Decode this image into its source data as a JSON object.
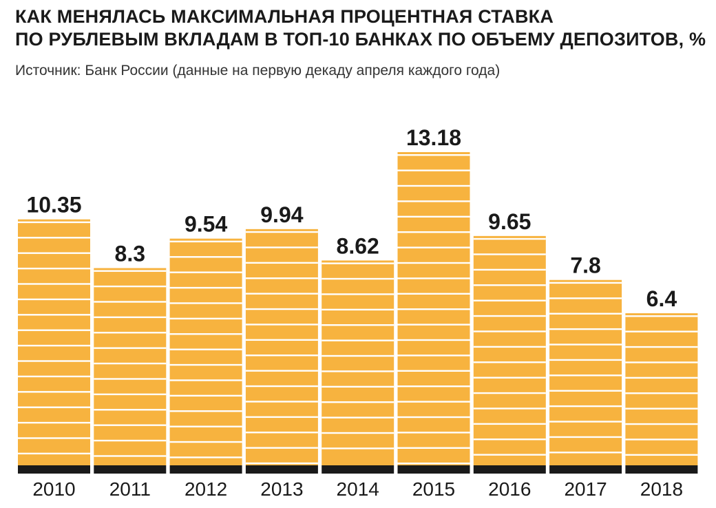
{
  "chart_data": {
    "type": "bar",
    "title_lines": [
      "КАК МЕНЯЛАСЬ МАКСИМАЛЬНАЯ ПРОЦЕНТНАЯ СТАВКА",
      "ПО РУБЛЕВЫМ ВКЛАДАМ В ТОП-10 БАНКАХ ПО ОБЪЕМУ ДЕПОЗИТОВ, %"
    ],
    "subtitle": "Источник: Банк России (данные на первую декаду апреля каждого года)",
    "categories": [
      "2010",
      "2011",
      "2012",
      "2013",
      "2014",
      "2015",
      "2016",
      "2017",
      "2018"
    ],
    "values": [
      10.35,
      8.3,
      9.54,
      9.94,
      8.62,
      13.18,
      9.65,
      7.8,
      6.4
    ],
    "value_labels": [
      "10.35",
      "8.3",
      "9.54",
      "9.94",
      "8.62",
      "13.18",
      "9.65",
      "7.8",
      "6.4"
    ],
    "ylim": [
      0,
      13.18
    ],
    "grid": false,
    "colors": {
      "bar": "#F7B33F",
      "stripe": "#FFFFFF",
      "base": "#1a1a1a",
      "text": "#1a1a1a"
    }
  }
}
